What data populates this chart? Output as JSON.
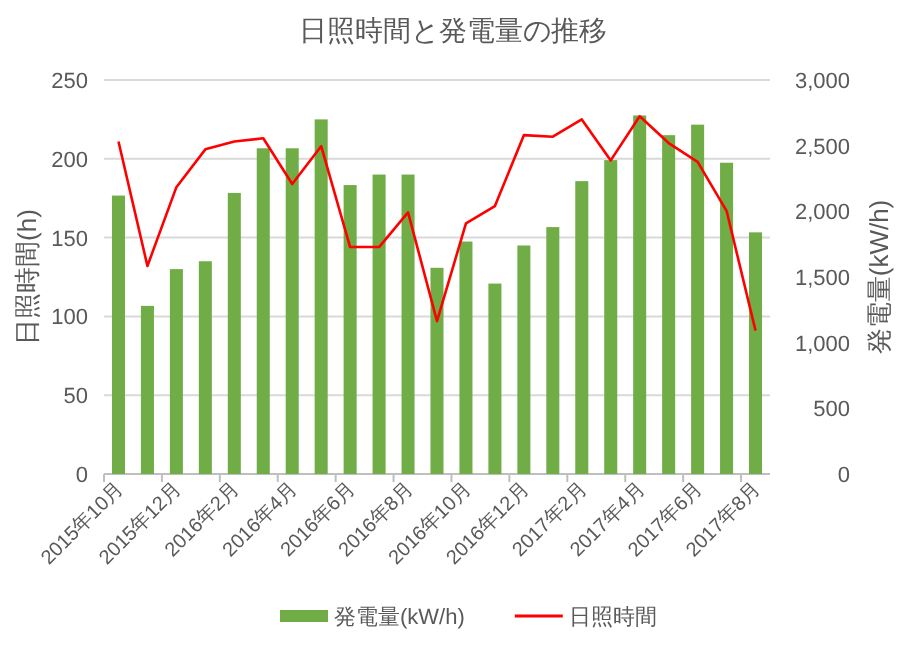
{
  "chart_data": {
    "type": "bar",
    "title": "日照時間と発電量の推移",
    "ylabel": "日照時間(h)",
    "y2label": "発電量(kW/h)",
    "categories": [
      "2015年10月",
      null,
      "2015年12月",
      null,
      "2016年2月",
      null,
      "2016年4月",
      null,
      "2016年6月",
      null,
      "2016年8月",
      null,
      "2016年10月",
      null,
      "2016年12月",
      null,
      "2017年2月",
      null,
      "2017年4月",
      null,
      "2017年6月",
      null,
      "2017年8月"
    ],
    "series": [
      {
        "name": "発電量(kW/h)",
        "axis": "y2",
        "color": "#70ad47",
        "values": [
          2120,
          1280,
          1560,
          1620,
          2140,
          2480,
          2480,
          2700,
          2200,
          2280,
          2280,
          1570,
          1770,
          1450,
          1740,
          1880,
          2230,
          2390,
          2730,
          2580,
          2660,
          2370,
          1840
        ]
      },
      {
        "name": "日照時間",
        "type": "line",
        "color": "#ff0000",
        "values": [
          211,
          132,
          182,
          206,
          211,
          213,
          184,
          208,
          144,
          144,
          166,
          97,
          159,
          170,
          215,
          214,
          225,
          199,
          227,
          210,
          198,
          167,
          91
        ]
      }
    ],
    "ylim": [
      0,
      250
    ],
    "yticks": [
      0,
      50,
      100,
      150,
      200,
      250
    ],
    "y2lim": [
      0,
      3000
    ],
    "y2ticks": [
      {
        "value": 0,
        "label": "0"
      },
      {
        "value": 500,
        "label": "500"
      },
      {
        "value": 1000,
        "label": "1,000"
      },
      {
        "value": 1500,
        "label": "1,500"
      },
      {
        "value": 2000,
        "label": "2,000"
      },
      {
        "value": 2500,
        "label": "2,500"
      },
      {
        "value": 3000,
        "label": "3,000"
      }
    ],
    "grid": "y",
    "legend": "bottom"
  }
}
